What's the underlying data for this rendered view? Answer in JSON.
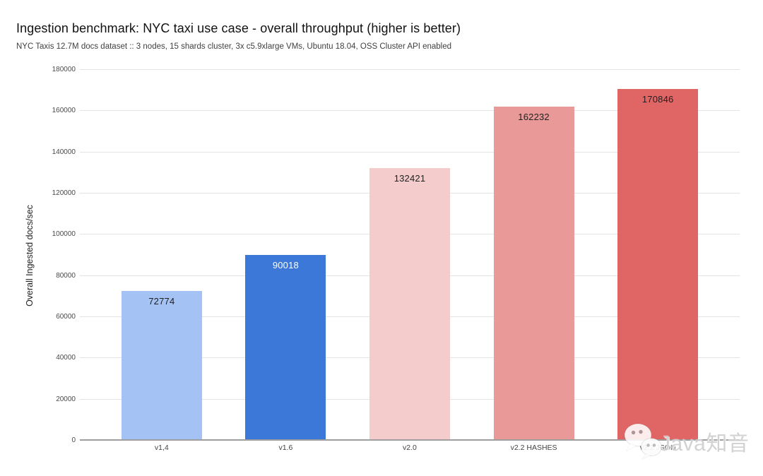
{
  "header": {
    "title": "Ingestion benchmark: NYC taxi use case - overall throughput (higher is better)",
    "subtitle": "NYC Taxis 12.7M docs dataset :: 3 nodes, 15 shards cluster, 3x c5.9xlarge VMs, Ubuntu 18.04, OSS Cluster API enabled"
  },
  "chart_data": {
    "type": "bar",
    "title": "Ingestion benchmark: NYC taxi use case - overall throughput (higher is better)",
    "subtitle": "NYC Taxis 12.7M docs dataset :: 3 nodes, 15 shards cluster, 3x c5.9xlarge VMs, Ubuntu 18.04, OSS Cluster API enabled",
    "categories": [
      "v1,4",
      "v1.6",
      "v2.0",
      "v2.2 HASHES",
      "v2.2 JSON"
    ],
    "values": [
      72774,
      90018,
      132421,
      162232,
      170846
    ],
    "value_labels": [
      "72774",
      "90018",
      "132421",
      "162232",
      "170846"
    ],
    "bar_colors": [
      "#a4c2f4",
      "#3c78d8",
      "#f4cccc",
      "#ea9999",
      "#e06666"
    ],
    "value_label_colors": [
      "#1f1f1f",
      "#ffffff",
      "#1f1f1f",
      "#1f1f1f",
      "#1f1f1f"
    ],
    "xlabel": "",
    "ylabel": "Overall Ingested docs/sec",
    "ylim": [
      0,
      180000
    ],
    "ytick_step": 20000,
    "ytick_labels": [
      "0",
      "20000",
      "40000",
      "60000",
      "80000",
      "100000",
      "120000",
      "140000",
      "160000",
      "180000"
    ],
    "grid": "horizontal",
    "legend": "none"
  },
  "watermark": {
    "icon": "wechat-icon",
    "text": "Java知音"
  },
  "colors": {
    "background": "#ffffff",
    "gridline": "#e3e3e3",
    "axis_line": "#9e9e9e",
    "title_text": "#111111",
    "subtitle_text": "#3f3f3f",
    "tick_text": "#4a4a4a"
  }
}
